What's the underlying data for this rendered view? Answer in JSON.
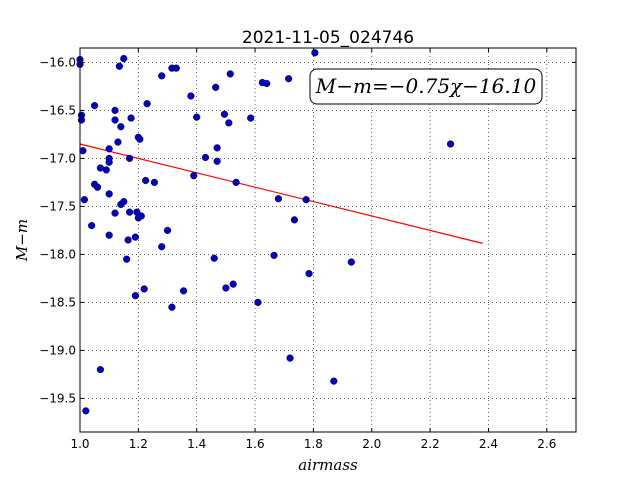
{
  "chart_data": {
    "type": "scatter",
    "title": "2021-11-05_024746",
    "xlabel": "airmass",
    "ylabel": "M−m",
    "xlim": [
      1.0,
      2.7
    ],
    "ylim": [
      -16.0,
      -19.8
    ],
    "y_inverted": true,
    "grid": true,
    "grid_style": "dotted",
    "annotation": "M−m=−0.75χ−16.10",
    "annotation_placement": "top-right",
    "x_ticks": [
      "1.0",
      "1.2",
      "1.4",
      "1.6",
      "1.8",
      "2.0",
      "2.2",
      "2.4",
      "2.6"
    ],
    "y_ticks": [
      "−16.0",
      "−16.5",
      "−17.0",
      "−17.5",
      "−18.0",
      "−18.5",
      "−19.0",
      "−19.5"
    ],
    "point_color": "#0000c8",
    "fit_color": "#ff0000",
    "fit": {
      "slope": -0.75,
      "intercept": -16.1,
      "x_range": [
        1.0,
        2.38
      ]
    },
    "points": [
      [
        1.0,
        -15.97
      ],
      [
        1.0,
        -16.02
      ],
      [
        1.005,
        -16.55
      ],
      [
        1.005,
        -16.6
      ],
      [
        1.01,
        -16.92
      ],
      [
        1.015,
        -17.43
      ],
      [
        1.02,
        -19.63
      ],
      [
        1.04,
        -17.7
      ],
      [
        1.05,
        -16.45
      ],
      [
        1.05,
        -17.27
      ],
      [
        1.06,
        -17.3
      ],
      [
        1.07,
        -17.1
      ],
      [
        1.07,
        -19.2
      ],
      [
        1.09,
        -17.12
      ],
      [
        1.1,
        -16.9
      ],
      [
        1.1,
        -17.0
      ],
      [
        1.1,
        -17.04
      ],
      [
        1.1,
        -17.37
      ],
      [
        1.1,
        -17.8
      ],
      [
        1.12,
        -16.5
      ],
      [
        1.12,
        -16.6
      ],
      [
        1.12,
        -17.57
      ],
      [
        1.13,
        -16.83
      ],
      [
        1.135,
        -16.04
      ],
      [
        1.14,
        -16.67
      ],
      [
        1.14,
        -17.48
      ],
      [
        1.15,
        -15.96
      ],
      [
        1.15,
        -17.45
      ],
      [
        1.16,
        -18.05
      ],
      [
        1.165,
        -17.85
      ],
      [
        1.17,
        -17.0
      ],
      [
        1.17,
        -17.56
      ],
      [
        1.175,
        -16.58
      ],
      [
        1.19,
        -17.82
      ],
      [
        1.19,
        -18.43
      ],
      [
        1.195,
        -17.56
      ],
      [
        1.2,
        -17.62
      ],
      [
        1.2,
        -16.78
      ],
      [
        1.205,
        -16.8
      ],
      [
        1.21,
        -17.6
      ],
      [
        1.22,
        -18.36
      ],
      [
        1.225,
        -17.23
      ],
      [
        1.23,
        -16.43
      ],
      [
        1.255,
        -17.25
      ],
      [
        1.28,
        -16.14
      ],
      [
        1.28,
        -17.92
      ],
      [
        1.3,
        -17.75
      ],
      [
        1.315,
        -16.06
      ],
      [
        1.315,
        -18.55
      ],
      [
        1.33,
        -16.06
      ],
      [
        1.355,
        -18.38
      ],
      [
        1.38,
        -16.35
      ],
      [
        1.39,
        -17.18
      ],
      [
        1.4,
        -16.57
      ],
      [
        1.43,
        -16.99
      ],
      [
        1.46,
        -18.04
      ],
      [
        1.465,
        -16.26
      ],
      [
        1.47,
        -16.89
      ],
      [
        1.47,
        -17.03
      ],
      [
        1.495,
        -16.54
      ],
      [
        1.5,
        -18.35
      ],
      [
        1.51,
        -16.63
      ],
      [
        1.515,
        -16.12
      ],
      [
        1.525,
        -18.31
      ],
      [
        1.535,
        -17.25
      ],
      [
        1.585,
        -16.58
      ],
      [
        1.61,
        -18.5
      ],
      [
        1.625,
        -16.21
      ],
      [
        1.64,
        -16.22
      ],
      [
        1.665,
        -18.01
      ],
      [
        1.68,
        -17.42
      ],
      [
        1.715,
        -16.17
      ],
      [
        1.72,
        -19.08
      ],
      [
        1.735,
        -17.64
      ],
      [
        1.775,
        -17.43
      ],
      [
        1.785,
        -18.2
      ],
      [
        1.805,
        -15.9
      ],
      [
        1.87,
        -19.32
      ],
      [
        1.93,
        -18.08
      ],
      [
        2.27,
        -16.85
      ]
    ]
  }
}
